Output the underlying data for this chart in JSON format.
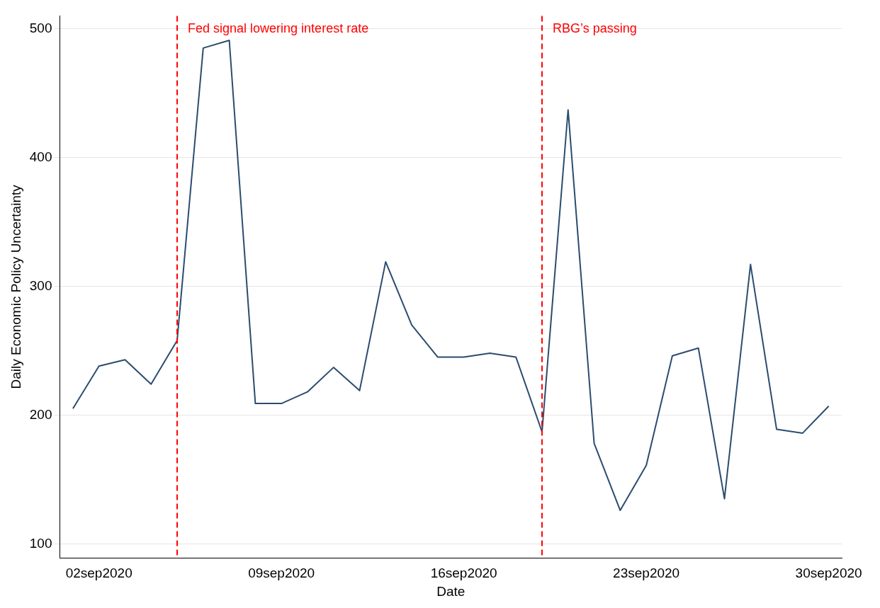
{
  "chart_data": {
    "type": "line",
    "xlabel": "Date",
    "ylabel": "Daily Economic Policy Uncertainty",
    "x": [
      "2020-09-01",
      "2020-09-02",
      "2020-09-03",
      "2020-09-04",
      "2020-09-05",
      "2020-09-06",
      "2020-09-07",
      "2020-09-08",
      "2020-09-09",
      "2020-09-10",
      "2020-09-11",
      "2020-09-12",
      "2020-09-13",
      "2020-09-14",
      "2020-09-15",
      "2020-09-16",
      "2020-09-17",
      "2020-09-18",
      "2020-09-19",
      "2020-09-20",
      "2020-09-21",
      "2020-09-22",
      "2020-09-23",
      "2020-09-24",
      "2020-09-25",
      "2020-09-26",
      "2020-09-27",
      "2020-09-28",
      "2020-09-29",
      "2020-09-30"
    ],
    "series": [
      {
        "color": "#2b4c6f",
        "values": [
          205,
          238,
          243,
          224,
          258,
          485,
          491,
          209,
          209,
          218,
          237,
          219,
          319,
          270,
          245,
          245,
          248,
          245,
          187,
          437,
          178,
          126,
          161,
          246,
          252,
          135,
          317,
          189,
          186,
          207
        ]
      }
    ],
    "xlim": [
      "2020-08-31T12:00",
      "2020-09-30T12:00"
    ],
    "xticks": [
      {
        "value": "2020-09-02",
        "label": "02sep2020"
      },
      {
        "value": "2020-09-09",
        "label": "09sep2020"
      },
      {
        "value": "2020-09-16",
        "label": "16sep2020"
      },
      {
        "value": "2020-09-23",
        "label": "23sep2020"
      },
      {
        "value": "2020-09-30",
        "label": "30sep2020"
      }
    ],
    "ylim": [
      89,
      510
    ],
    "yticks": [
      100,
      200,
      300,
      400,
      500
    ],
    "grid": "y",
    "legend": false,
    "marker": "none",
    "line_style": "solid",
    "ref_lines": [
      {
        "axis": "x",
        "value": "2020-09-05",
        "label": "Fed signal lowering interest rate",
        "color": "#ff0000",
        "line_style": "dashed"
      },
      {
        "axis": "x",
        "value": "2020-09-19",
        "label": "RBG’s passing",
        "color": "#ff0000",
        "line_style": "dashed"
      }
    ]
  }
}
